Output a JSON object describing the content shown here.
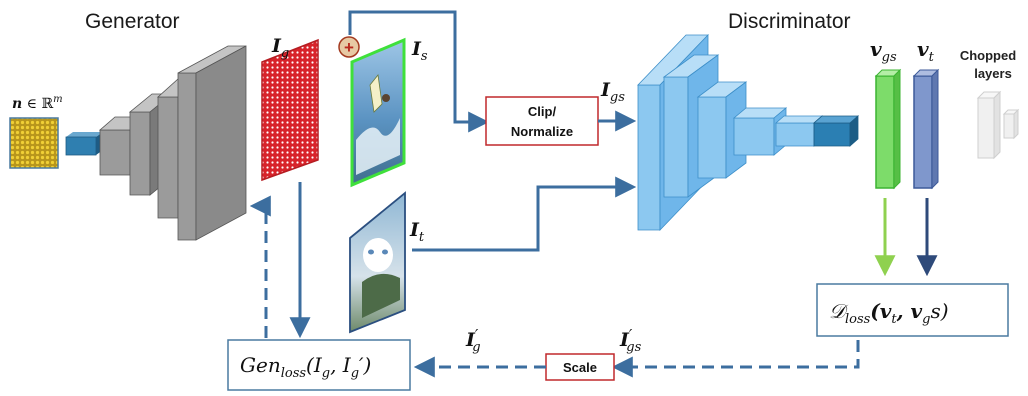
{
  "titles": {
    "generator": "Generator",
    "discriminator": "Discriminator"
  },
  "labels": {
    "noise_vec": "n",
    "noise_space": " ∈ ℝ",
    "noise_sup": "m",
    "ig_base": "I",
    "ig_sub": "g",
    "is_base": "I",
    "is_sub": "s",
    "it_base": "I",
    "it_sub": "t",
    "igs_base": "I",
    "igs_sub": "gs",
    "vgs_base": "v",
    "vgs_sub": "gs",
    "vt_base": "v",
    "vt_sub": "t",
    "igprime_base": "I",
    "igprime_sub": "g",
    "igprime_prime": "′",
    "igsprime_base": "I",
    "igsprime_sub": "gs",
    "igsprime_prime": "′",
    "chopped_line1": "Chopped",
    "chopped_line2": "layers",
    "plus_symbol": "+"
  },
  "boxes": {
    "clip_line1": "Clip/",
    "clip_line2": "Normalize",
    "scale": "Scale",
    "dloss": "𝒟",
    "dloss_sub": "loss",
    "dloss_args": "(v",
    "dloss_arg1_sub": "t",
    "dloss_sep": ", v",
    "dloss_arg2_sub": "g",
    "dloss_end": "s)",
    "genloss": "Gen",
    "genloss_sub": "loss",
    "genloss_args": "(I",
    "genloss_arg1_sub": "g",
    "genloss_sep": ", I",
    "genloss_arg2_sub": "g",
    "genloss_end": "′)"
  },
  "colors": {
    "arrow_blue": "#3c6e9f",
    "green_arrow": "#8fd14f",
    "dark_arrow": "#2e4a7a",
    "clip_border": "#c0282c",
    "generator_gray": "#8c8c8c",
    "disc_blue": "#6fb6ea",
    "vgs_green": "#7ddc6a",
    "vt_blue": "#7f97cc"
  }
}
